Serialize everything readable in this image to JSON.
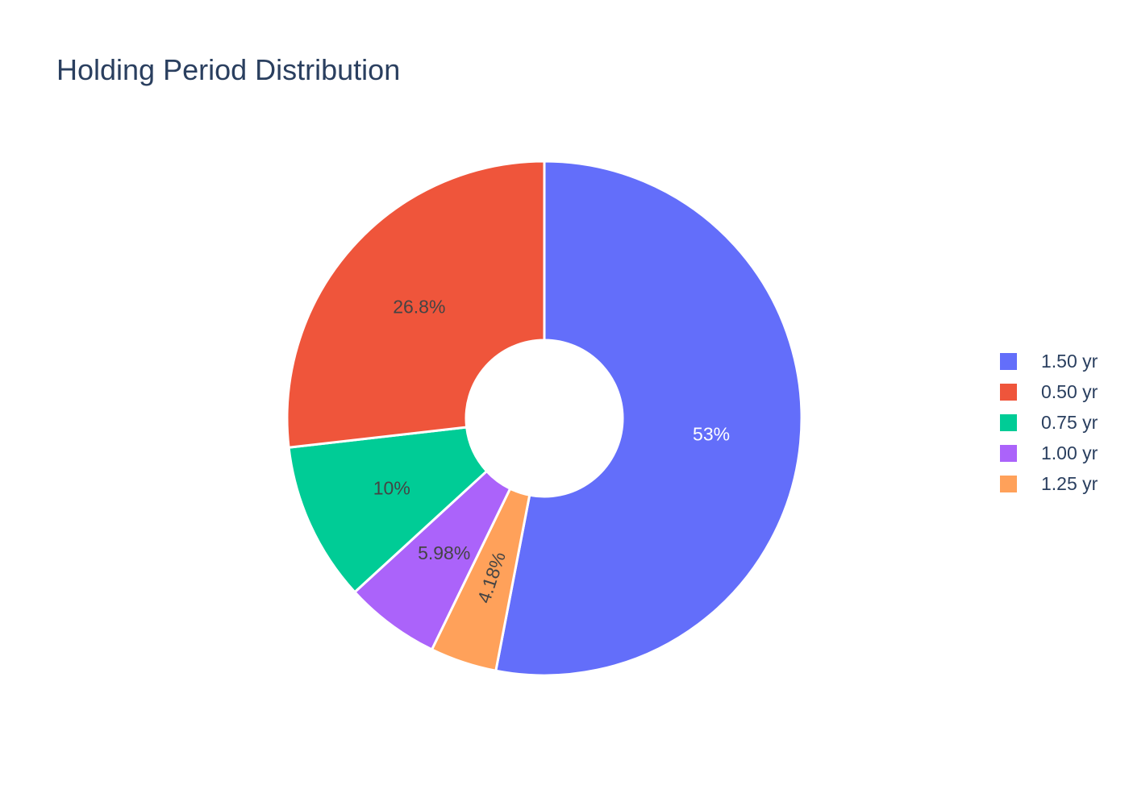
{
  "chart_data": {
    "type": "pie",
    "title": "Holding Period Distribution",
    "hole": true,
    "legend_placement": "right",
    "slices": [
      {
        "name": "1.50 yr",
        "value": 53.0,
        "label": "53%",
        "color": "#636efa",
        "label_color": "#ffffff"
      },
      {
        "name": "1.25 yr",
        "value": 4.18,
        "label": "4.18%",
        "color": "#ffa15a",
        "label_color": "#444444"
      },
      {
        "name": "1.00 yr",
        "value": 5.98,
        "label": "5.98%",
        "color": "#ab63fa",
        "label_color": "#444444"
      },
      {
        "name": "0.75 yr",
        "value": 10.0,
        "label": "10%",
        "color": "#00cc96",
        "label_color": "#444444"
      },
      {
        "name": "0.50 yr",
        "value": 26.8,
        "label": "26.8%",
        "color": "#ef553b",
        "label_color": "#444444"
      }
    ],
    "legend_order": [
      "1.50 yr",
      "0.50 yr",
      "0.75 yr",
      "1.00 yr",
      "1.25 yr"
    ]
  }
}
